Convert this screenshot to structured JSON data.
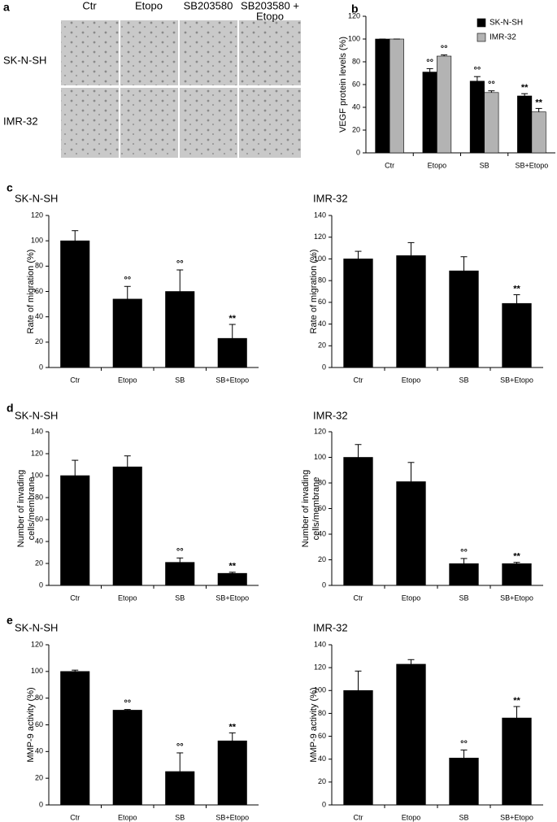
{
  "panel_labels": [
    "a",
    "b",
    "c",
    "d",
    "e"
  ],
  "micrographs": {
    "columns": [
      [
        "Ctr"
      ],
      [
        "Etopo"
      ],
      [
        "SB203580"
      ],
      [
        "SB203580 +",
        "Etopo"
      ]
    ],
    "rows": [
      "SK-N-SH",
      "IMR-32"
    ]
  },
  "chart_data": [
    {
      "type": "bar",
      "y_label": "VEGF protein levels (%)",
      "categories": [
        "Ctr",
        "Etopo",
        "SB",
        "SB+Etopo"
      ],
      "series": [
        {
          "name": "SK-N-SH",
          "color": "#000000",
          "values": [
            100,
            71,
            63,
            50
          ],
          "errors": [
            0,
            3,
            4,
            2
          ],
          "annotations": [
            null,
            "°°",
            "°°",
            "**"
          ]
        },
        {
          "name": "IMR-32",
          "color": "#b3b3b3",
          "values": [
            100,
            85,
            53,
            36
          ],
          "errors": [
            0,
            1,
            1.5,
            3
          ],
          "annotations": [
            null,
            "°°",
            "°°",
            "**"
          ]
        }
      ],
      "ylim": [
        0,
        120
      ],
      "yticks": [
        0,
        20,
        40,
        60,
        80,
        100,
        120
      ],
      "legend": "top-right"
    },
    {
      "type": "bar",
      "title": "SK-N-SH",
      "y_label": "Rate of migration (%)",
      "categories": [
        "Ctr",
        "Etopo",
        "SB",
        "SB+Etopo"
      ],
      "values": [
        100,
        54,
        60,
        23
      ],
      "errors": [
        8,
        10,
        17,
        11
      ],
      "annotations": [
        null,
        "°°",
        "°°",
        "**"
      ],
      "color": "#000000",
      "ylim": [
        0,
        120
      ],
      "yticks": [
        0,
        20,
        40,
        60,
        80,
        100,
        120
      ]
    },
    {
      "type": "bar",
      "title": "IMR-32",
      "y_label": "Rate of migration (%)",
      "categories": [
        "Ctr",
        "Etopo",
        "SB",
        "SB+Etopo"
      ],
      "values": [
        100,
        103,
        89,
        59
      ],
      "errors": [
        7,
        12,
        13,
        8
      ],
      "annotations": [
        null,
        null,
        null,
        "**"
      ],
      "color": "#000000",
      "ylim": [
        0,
        140
      ],
      "yticks": [
        0,
        20,
        40,
        60,
        80,
        100,
        120,
        140
      ]
    },
    {
      "type": "bar",
      "title": "SK-N-SH",
      "y_label_lines": [
        "Number of invading",
        "cells/membrane"
      ],
      "categories": [
        "Ctr",
        "Etopo",
        "SB",
        "SB+Etopo"
      ],
      "values": [
        100,
        108,
        21,
        11
      ],
      "errors": [
        14,
        10,
        4,
        1
      ],
      "annotations": [
        null,
        null,
        "°°",
        "**"
      ],
      "color": "#000000",
      "ylim": [
        0,
        140
      ],
      "yticks": [
        0,
        20,
        40,
        60,
        80,
        100,
        120,
        140
      ]
    },
    {
      "type": "bar",
      "title": "IMR-32",
      "y_label_lines": [
        "Number of invading",
        "cells/membrane"
      ],
      "categories": [
        "Ctr",
        "Etopo",
        "SB",
        "SB+Etopo"
      ],
      "values": [
        100,
        81,
        17,
        17
      ],
      "errors": [
        10,
        15,
        4,
        1
      ],
      "annotations": [
        null,
        null,
        "°°",
        "**"
      ],
      "color": "#000000",
      "ylim": [
        0,
        120
      ],
      "yticks": [
        0,
        20,
        40,
        60,
        80,
        100,
        120
      ]
    },
    {
      "type": "bar",
      "title": "SK-N-SH",
      "y_label": "MMP-9 activity (%)",
      "categories": [
        "Ctr",
        "Etopo",
        "SB",
        "SB+Etopo"
      ],
      "values": [
        100,
        71,
        25,
        48
      ],
      "errors": [
        1,
        0.5,
        14,
        6
      ],
      "annotations": [
        null,
        "°°",
        "°°",
        "**"
      ],
      "color": "#000000",
      "ylim": [
        0,
        120
      ],
      "yticks": [
        0,
        20,
        40,
        60,
        80,
        100,
        120
      ]
    },
    {
      "type": "bar",
      "title": "IMR-32",
      "y_label": "MMP-9 activity (%)",
      "categories": [
        "Ctr",
        "Etopo",
        "SB",
        "SB+Etopo"
      ],
      "values": [
        100,
        123,
        41,
        76
      ],
      "errors": [
        17,
        4,
        7,
        10
      ],
      "annotations": [
        null,
        null,
        "°°",
        "**"
      ],
      "color": "#000000",
      "ylim": [
        0,
        140
      ],
      "yticks": [
        0,
        20,
        40,
        60,
        80,
        100,
        120,
        140
      ]
    }
  ]
}
